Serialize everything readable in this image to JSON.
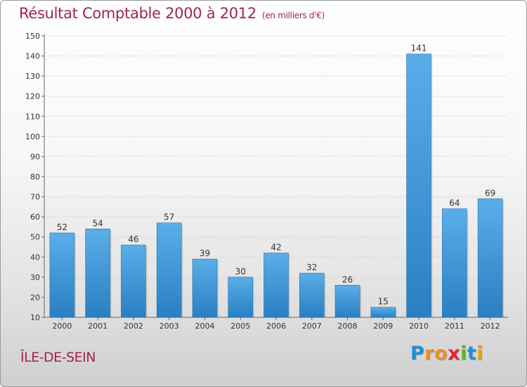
{
  "header": {
    "title": "Résultat Comptable 2000 à 2012",
    "unit": "(en milliers d'€)"
  },
  "footer": {
    "place": "ÎLE-DE-SEIN",
    "logo_letters": [
      "P",
      "r",
      "o",
      "x",
      "i",
      "t",
      "i"
    ],
    "logo_colors": [
      "#1f8fd6",
      "#f28c1e",
      "#f28c1e",
      "#e3262f",
      "#5cb531",
      "#1f8fd6",
      "#e8a000"
    ]
  },
  "chart_data": {
    "type": "bar",
    "categories": [
      "2000",
      "2001",
      "2002",
      "2003",
      "2004",
      "2005",
      "2006",
      "2007",
      "2008",
      "2009",
      "2010",
      "2011",
      "2012"
    ],
    "values": [
      52,
      54,
      46,
      57,
      39,
      30,
      42,
      32,
      26,
      15,
      141,
      64,
      69
    ],
    "y_ticks": [
      10,
      20,
      30,
      40,
      50,
      60,
      70,
      80,
      90,
      100,
      110,
      120,
      130,
      140,
      150
    ],
    "ylim": [
      10,
      150
    ],
    "grid": "horizontal dotted",
    "bar_color_top": "#5aaee8",
    "bar_color_bottom": "#2a7fc2"
  }
}
